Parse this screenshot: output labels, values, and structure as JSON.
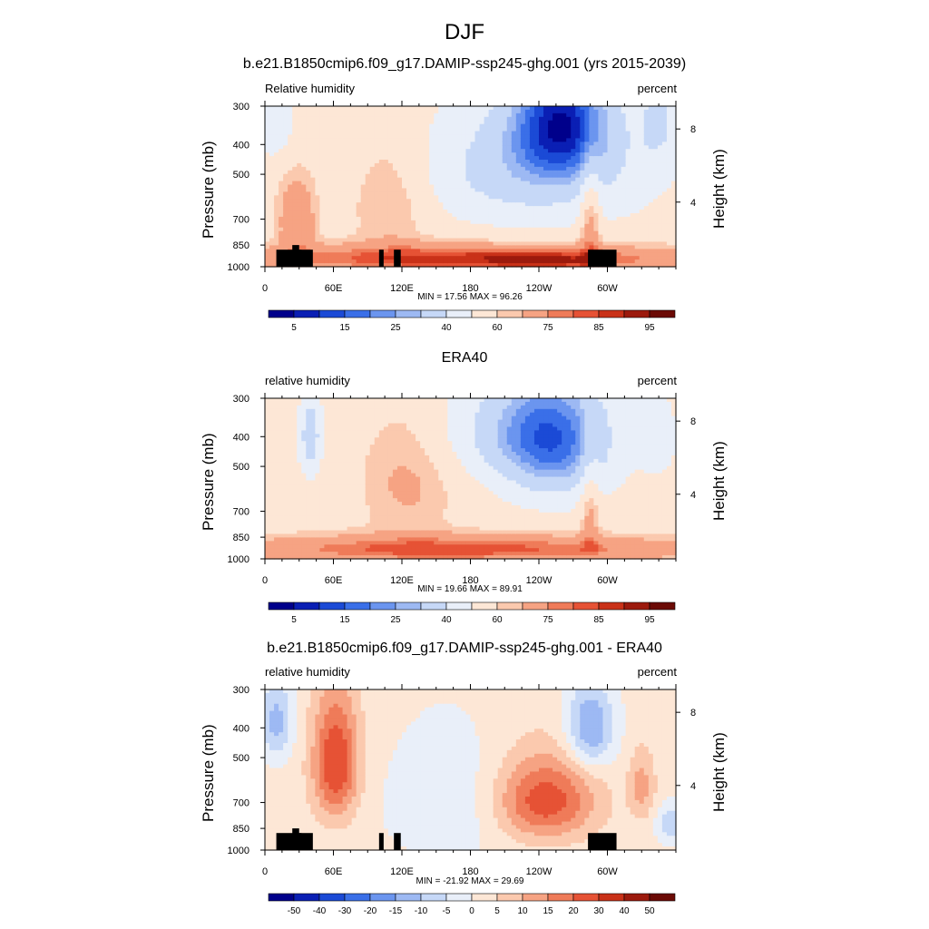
{
  "figure_title": "DJF",
  "chart_data": [
    {
      "type": "heatmap",
      "title": "b.e21.B1850cmip6.f09_g17.DAMIP-ssp245-ghg.001 (yrs 2015-2039)",
      "left_label": "Relative humidity",
      "right_label": "percent",
      "ylabel": "Pressure (mb)",
      "ylabel_right": "Height (km)",
      "x_ticks": [
        "0",
        "60E",
        "120E",
        "180",
        "120W",
        "60W"
      ],
      "y_ticks": [
        "300",
        "400",
        "500",
        "700",
        "850",
        "1000"
      ],
      "y_right_ticks": [
        "8",
        "4"
      ],
      "xlim": [
        0,
        360
      ],
      "ylim": [
        1000,
        300
      ],
      "stats": "MIN =  17.56  MAX =  96.26",
      "min": 17.56,
      "max": 96.26,
      "colorbar_labels": [
        "5",
        "15",
        "25",
        "40",
        "60",
        "75",
        "85",
        "95"
      ],
      "features": [
        "blue minimum near 120W-140W at 300-400 mb",
        "high humidity band 850-1000 mb",
        "terrain masked in black"
      ]
    },
    {
      "type": "heatmap",
      "title": "ERA40",
      "left_label": "relative humidity",
      "right_label": "percent",
      "ylabel": "Pressure (mb)",
      "ylabel_right": "Height (km)",
      "x_ticks": [
        "0",
        "60E",
        "120E",
        "180",
        "120W",
        "60W"
      ],
      "y_ticks": [
        "300",
        "400",
        "500",
        "700",
        "850",
        "1000"
      ],
      "y_right_ticks": [
        "8",
        "4"
      ],
      "xlim": [
        0,
        360
      ],
      "ylim": [
        1000,
        300
      ],
      "stats": "MIN =  19.66  MAX =  89.91",
      "min": 19.66,
      "max": 89.91,
      "colorbar_labels": [
        "5",
        "15",
        "25",
        "40",
        "60",
        "75",
        "85",
        "95"
      ]
    },
    {
      "type": "heatmap",
      "title": "b.e21.B1850cmip6.f09_g17.DAMIP-ssp245-ghg.001 - ERA40",
      "left_label": "relative humidity",
      "right_label": "percent",
      "ylabel": "Pressure (mb)",
      "ylabel_right": "Height (km)",
      "x_ticks": [
        "0",
        "60E",
        "120E",
        "180",
        "120W",
        "60W"
      ],
      "y_ticks": [
        "300",
        "400",
        "500",
        "700",
        "850",
        "1000"
      ],
      "y_right_ticks": [
        "8",
        "4"
      ],
      "xlim": [
        0,
        360
      ],
      "ylim": [
        1000,
        300
      ],
      "stats": "MIN = -21.92  MAX =  29.69",
      "min": -21.92,
      "max": 29.69,
      "colorbar_labels": [
        "-50",
        "-40",
        "-30",
        "-20",
        "-15",
        "-10",
        "-5",
        "0",
        "5",
        "10",
        "15",
        "20",
        "30",
        "40",
        "50"
      ]
    }
  ],
  "colors": {
    "rh_scale": [
      "#00008b",
      "#0a1fb4",
      "#1b4ad6",
      "#3a6fe8",
      "#6b95ef",
      "#9db9f3",
      "#c6d8f7",
      "#e9eff9",
      "#fde7d6",
      "#fbc9ae",
      "#f6a383",
      "#ef7b59",
      "#e65235",
      "#c93118",
      "#9c1a0d",
      "#6b0a05"
    ],
    "diff_scale": [
      "#00008b",
      "#0a1fb4",
      "#1b4ad6",
      "#3a6fe8",
      "#6b95ef",
      "#9db9f3",
      "#c6d8f7",
      "#e9eff9",
      "#fde7d6",
      "#fbc9ae",
      "#f6a383",
      "#ef7b59",
      "#e65235",
      "#c93118",
      "#9c1a0d",
      "#6b0a05"
    ]
  }
}
